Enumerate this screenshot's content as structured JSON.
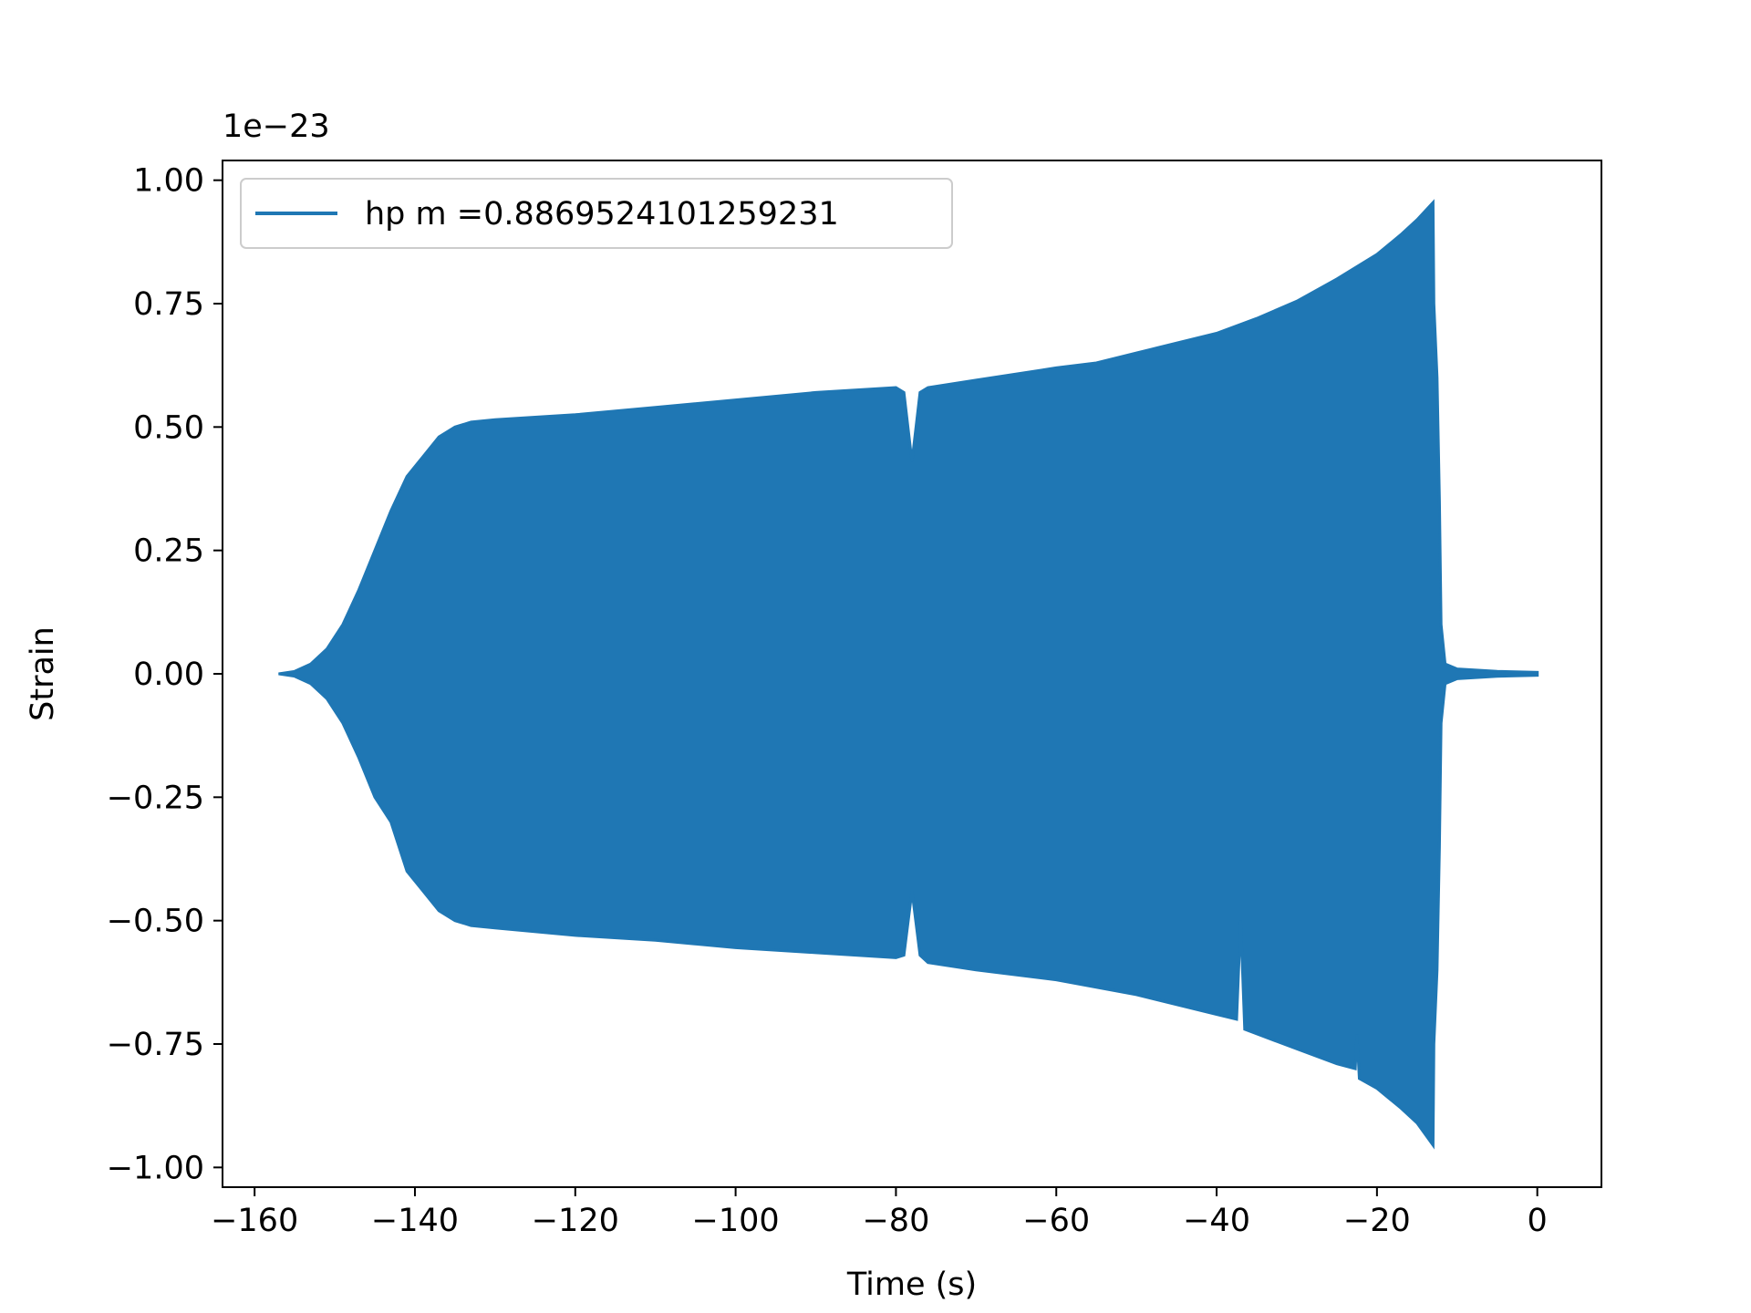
{
  "chart_data": {
    "type": "line",
    "title": "",
    "xlabel": "Time (s)",
    "ylabel": "Strain",
    "y_offset_label": "1e−23",
    "xlim": [
      -164,
      8
    ],
    "ylim": [
      -1.04,
      1.04
    ],
    "grid": false,
    "legend_placement": "upper-left",
    "xticks": [
      {
        "value": -160,
        "label": "−160"
      },
      {
        "value": -140,
        "label": "−140"
      },
      {
        "value": -120,
        "label": "−120"
      },
      {
        "value": -100,
        "label": "−100"
      },
      {
        "value": -80,
        "label": "−80"
      },
      {
        "value": -60,
        "label": "−60"
      },
      {
        "value": -40,
        "label": "−40"
      },
      {
        "value": -20,
        "label": "−20"
      },
      {
        "value": 0,
        "label": "0"
      }
    ],
    "yticks": [
      {
        "value": 1.0,
        "label": "1.00"
      },
      {
        "value": 0.75,
        "label": "0.75"
      },
      {
        "value": 0.5,
        "label": "0.50"
      },
      {
        "value": 0.25,
        "label": "0.25"
      },
      {
        "value": 0.0,
        "label": "0.00"
      },
      {
        "value": -0.25,
        "label": "−0.25"
      },
      {
        "value": -0.5,
        "label": "−0.50"
      },
      {
        "value": -0.75,
        "label": "−0.75"
      },
      {
        "value": -1.0,
        "label": "−1.00"
      }
    ],
    "series": [
      {
        "name": "hp m =0.8869524101259231",
        "color": "#1f77b4",
        "upper": [
          [
            -157,
            0.0
          ],
          [
            -155,
            0.005
          ],
          [
            -153,
            0.02
          ],
          [
            -151,
            0.05
          ],
          [
            -149,
            0.1
          ],
          [
            -147,
            0.17
          ],
          [
            -145,
            0.25
          ],
          [
            -143,
            0.33
          ],
          [
            -141,
            0.4
          ],
          [
            -139,
            0.44
          ],
          [
            -137,
            0.48
          ],
          [
            -135,
            0.5
          ],
          [
            -133,
            0.51
          ],
          [
            -130,
            0.515
          ],
          [
            -120,
            0.525
          ],
          [
            -110,
            0.54
          ],
          [
            -100,
            0.555
          ],
          [
            -90,
            0.57
          ],
          [
            -80,
            0.58
          ],
          [
            -79,
            0.57
          ],
          [
            -78,
            0.43
          ],
          [
            -77,
            0.57
          ],
          [
            -76,
            0.58
          ],
          [
            -70,
            0.595
          ],
          [
            -60,
            0.62
          ],
          [
            -55,
            0.63
          ],
          [
            -50,
            0.65
          ],
          [
            -40,
            0.69
          ],
          [
            -35,
            0.72
          ],
          [
            -30,
            0.755
          ],
          [
            -25,
            0.8
          ],
          [
            -20,
            0.85
          ],
          [
            -17,
            0.89
          ],
          [
            -15,
            0.92
          ],
          [
            -13,
            0.955
          ],
          [
            -12.9,
            0.75
          ],
          [
            -12.5,
            0.6
          ],
          [
            -12.2,
            0.35
          ],
          [
            -12.0,
            0.1
          ],
          [
            -11.5,
            0.02
          ],
          [
            -10,
            0.01
          ],
          [
            -5,
            0.005
          ],
          [
            0,
            0.003
          ]
        ],
        "lower": [
          [
            -157,
            0.0
          ],
          [
            -155,
            -0.005
          ],
          [
            -153,
            -0.02
          ],
          [
            -151,
            -0.05
          ],
          [
            -149,
            -0.1
          ],
          [
            -147,
            -0.17
          ],
          [
            -145,
            -0.25
          ],
          [
            -143,
            -0.3
          ],
          [
            -141,
            -0.4
          ],
          [
            -139,
            -0.44
          ],
          [
            -137,
            -0.48
          ],
          [
            -135,
            -0.5
          ],
          [
            -133,
            -0.51
          ],
          [
            -130,
            -0.515
          ],
          [
            -120,
            -0.53
          ],
          [
            -110,
            -0.54
          ],
          [
            -100,
            -0.555
          ],
          [
            -90,
            -0.565
          ],
          [
            -80,
            -0.575
          ],
          [
            -79,
            -0.57
          ],
          [
            -78,
            -0.44
          ],
          [
            -77,
            -0.57
          ],
          [
            -76,
            -0.585
          ],
          [
            -70,
            -0.6
          ],
          [
            -60,
            -0.62
          ],
          [
            -50,
            -0.65
          ],
          [
            -40,
            -0.69
          ],
          [
            -37.5,
            -0.7
          ],
          [
            -37,
            -0.5
          ],
          [
            -36.5,
            -0.72
          ],
          [
            -30,
            -0.76
          ],
          [
            -25,
            -0.79
          ],
          [
            -22.7,
            -0.8
          ],
          [
            -22.5,
            -0.73
          ],
          [
            -22.2,
            -0.82
          ],
          [
            -20,
            -0.84
          ],
          [
            -17,
            -0.88
          ],
          [
            -15,
            -0.91
          ],
          [
            -13,
            -0.955
          ],
          [
            -12.9,
            -0.75
          ],
          [
            -12.5,
            -0.6
          ],
          [
            -12.2,
            -0.35
          ],
          [
            -12.0,
            -0.1
          ],
          [
            -11.5,
            -0.02
          ],
          [
            -10,
            -0.01
          ],
          [
            -5,
            -0.005
          ],
          [
            0,
            -0.003
          ]
        ]
      }
    ]
  }
}
